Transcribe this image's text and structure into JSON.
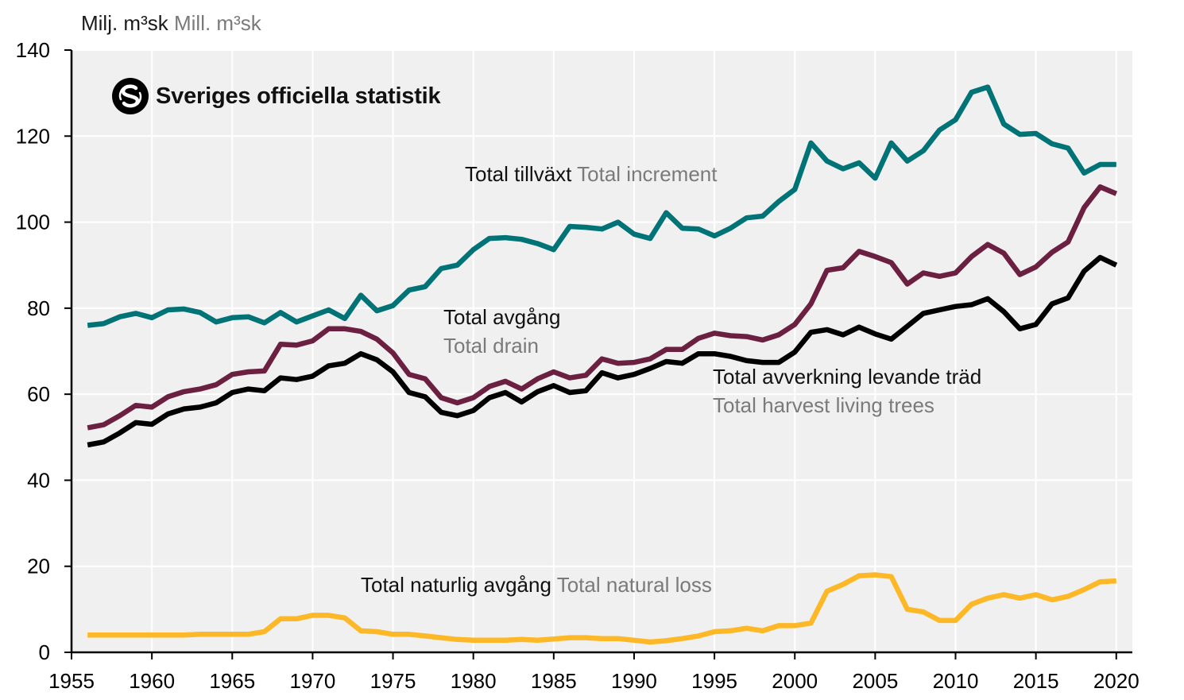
{
  "logo": {
    "text": "Sveriges officiella statistik"
  },
  "unit": {
    "sv": "Milj. m³sk",
    "en": "Mill. m³sk"
  },
  "labels": {
    "increment": {
      "sv": "Total tillväxt",
      "en": "Total increment"
    },
    "drain": {
      "sv": "Total avgång",
      "en": "Total drain"
    },
    "harvest": {
      "sv": "Total avverkning levande träd",
      "en": "Total harvest living trees"
    },
    "natural": {
      "sv": "Total naturlig avgång",
      "en": "Total natural loss"
    }
  },
  "colors": {
    "increment": "#007377",
    "drain": "#6b2042",
    "harvest": "#000000",
    "natural": "#fdb827",
    "plot_bg": "#f0f0f0",
    "grid": "#ffffff"
  },
  "chart_data": {
    "type": "line",
    "xlim": [
      1955,
      2021
    ],
    "ylim": [
      0,
      140
    ],
    "x_ticks": [
      1955,
      1960,
      1965,
      1970,
      1975,
      1980,
      1985,
      1990,
      1995,
      2000,
      2005,
      2010,
      2015,
      2020
    ],
    "y_ticks": [
      0,
      20,
      40,
      60,
      80,
      100,
      120,
      140
    ],
    "grid": true,
    "x": [
      1956,
      1957,
      1958,
      1959,
      1960,
      1961,
      1962,
      1963,
      1964,
      1965,
      1966,
      1967,
      1968,
      1969,
      1970,
      1971,
      1972,
      1973,
      1974,
      1975,
      1976,
      1977,
      1978,
      1979,
      1980,
      1981,
      1982,
      1983,
      1984,
      1985,
      1986,
      1987,
      1988,
      1989,
      1990,
      1991,
      1992,
      1993,
      1994,
      1995,
      1996,
      1997,
      1998,
      1999,
      2000,
      2001,
      2002,
      2003,
      2004,
      2005,
      2006,
      2007,
      2008,
      2009,
      2010,
      2011,
      2012,
      2013,
      2014,
      2015,
      2016,
      2017,
      2018,
      2019,
      2020
    ],
    "series": [
      {
        "key": "increment",
        "name": "Total tillväxt Total increment",
        "values": [
          76,
          76.4,
          78,
          78.8,
          77.8,
          79.6,
          79.8,
          79,
          76.8,
          77.8,
          78,
          76.6,
          79,
          76.8,
          78.2,
          79.6,
          77.6,
          83,
          79.4,
          80.6,
          84.2,
          85,
          89.2,
          90,
          93.6,
          96.2,
          96.4,
          96,
          95,
          93.6,
          99,
          98.8,
          98.4,
          100,
          97.2,
          96.2,
          102.2,
          98.6,
          98.4,
          96.8,
          98.6,
          101,
          101.4,
          104.8,
          107.6,
          118.4,
          114.2,
          112.4,
          113.8,
          110.2,
          118.4,
          114.2,
          116.6,
          121.4,
          123.8,
          130.2,
          131.4,
          122.8,
          120.4,
          120.6,
          118.2,
          117.2,
          111.4,
          113.4,
          113.4
        ]
      },
      {
        "key": "drain",
        "name": "Total avgång Total drain",
        "values": [
          52.2,
          52.9,
          55,
          57.4,
          57,
          59.4,
          60.6,
          61.2,
          62.2,
          64.6,
          65.2,
          65.4,
          71.6,
          71.4,
          72.4,
          75.2,
          75.2,
          74.6,
          72.8,
          69.6,
          64.6,
          63.6,
          59.2,
          58,
          59.2,
          61.8,
          63,
          61.2,
          63.6,
          65.2,
          63.8,
          64.4,
          68.2,
          67.2,
          67.4,
          68.2,
          70.4,
          70.4,
          73,
          74.2,
          73.6,
          73.4,
          72.6,
          73.8,
          76.2,
          81,
          88.8,
          89.4,
          93.2,
          92,
          90.6,
          85.6,
          88.2,
          87.4,
          88.2,
          92,
          94.8,
          92.8,
          87.8,
          89.6,
          93,
          95.4,
          103.4,
          108.2,
          106.6
        ]
      },
      {
        "key": "harvest",
        "name": "Total avverkning levande träd Total harvest living trees",
        "values": [
          48.2,
          48.9,
          51,
          53.4,
          53,
          55.4,
          56.6,
          57,
          58,
          60.4,
          61.2,
          60.8,
          63.8,
          63.4,
          64.2,
          66.6,
          67.2,
          69.4,
          68,
          65.2,
          60.4,
          59.4,
          55.8,
          55,
          56.2,
          59.2,
          60.4,
          58.2,
          60.6,
          62,
          60.4,
          60.8,
          65,
          63.8,
          64.6,
          66,
          67.6,
          67.2,
          69.4,
          69.4,
          68.8,
          67.8,
          67.4,
          67.4,
          69.8,
          74.4,
          75,
          73.8,
          75.6,
          74,
          72.8,
          75.8,
          78.8,
          79.6,
          80.4,
          80.8,
          82.2,
          79.2,
          75.2,
          76.2,
          81,
          82.4,
          88.6,
          91.8,
          90
        ]
      },
      {
        "key": "natural",
        "name": "Total naturlig avgång Total natural loss",
        "values": [
          4,
          4,
          4,
          4,
          4,
          4,
          4,
          4.2,
          4.2,
          4.2,
          4.2,
          4.8,
          7.8,
          7.8,
          8.6,
          8.6,
          8,
          5,
          4.8,
          4.2,
          4.2,
          3.8,
          3.4,
          3,
          2.8,
          2.8,
          2.8,
          3,
          2.8,
          3.1,
          3.4,
          3.4,
          3.2,
          3.2,
          2.8,
          2.4,
          2.7,
          3.2,
          3.8,
          4.8,
          5,
          5.6,
          5,
          6.2,
          6.2,
          6.8,
          14.2,
          15.8,
          17.8,
          18,
          17.6,
          10,
          9.4,
          7.4,
          7.4,
          11.2,
          12.6,
          13.4,
          12.6,
          13.4,
          12.2,
          13,
          14.6,
          16.4,
          16.6
        ]
      }
    ]
  }
}
